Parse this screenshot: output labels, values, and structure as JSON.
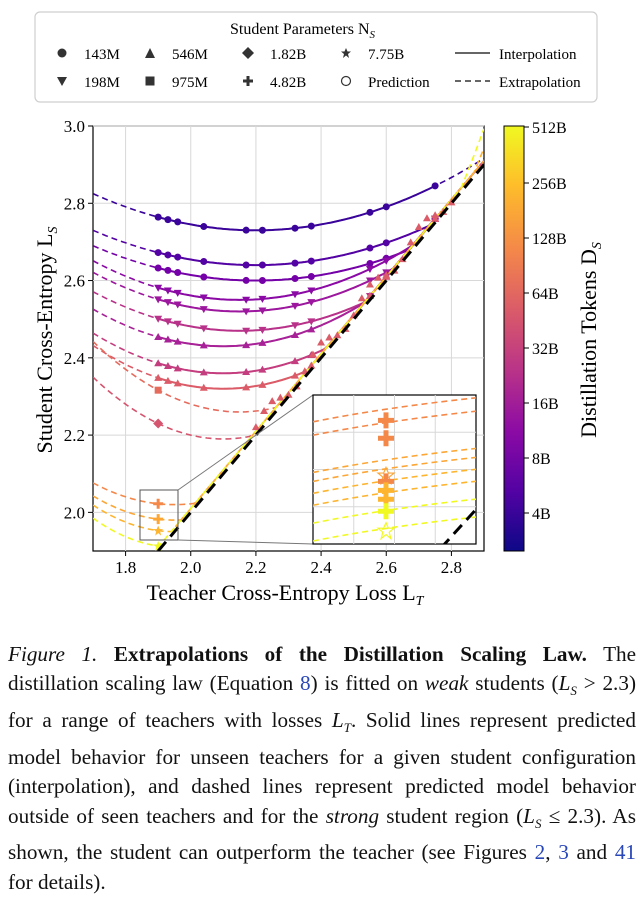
{
  "legend": {
    "title": "Student Parameters N",
    "title_sub": "S",
    "markers": [
      {
        "label": "143M",
        "marker": "circle"
      },
      {
        "label": "198M",
        "marker": "triangle-down"
      },
      {
        "label": "546M",
        "marker": "triangle-up"
      },
      {
        "label": "975M",
        "marker": "square"
      },
      {
        "label": "1.82B",
        "marker": "diamond"
      },
      {
        "label": "4.82B",
        "marker": "plus"
      },
      {
        "label": "7.75B",
        "marker": "star"
      },
      {
        "label": "Prediction",
        "marker": "open-circle"
      }
    ],
    "line_styles": [
      {
        "label": "Interpolation",
        "style": "solid"
      },
      {
        "label": "Extrapolation",
        "style": "dashed"
      }
    ]
  },
  "chart_data": {
    "type": "scatter",
    "xlabel": "Teacher Cross-Entropy Loss L",
    "xlabel_sub": "T",
    "ylabel": "Student Cross-Entropy L",
    "ylabel_sub": "S",
    "xlim": [
      1.7,
      2.9
    ],
    "ylim": [
      1.9,
      3.0
    ],
    "x_ticks": [
      "1.8",
      "2.0",
      "2.2",
      "2.4",
      "2.6",
      "2.8"
    ],
    "y_ticks": [
      "2.0",
      "2.2",
      "2.4",
      "2.6",
      "2.8",
      "3.0"
    ],
    "grid": true,
    "identity_line": {
      "style": "black dashed",
      "meaning": "student = teacher"
    },
    "colorbar": {
      "label": "Distillation Tokens D",
      "label_sub": "S",
      "ticks": [
        "4B",
        "8B",
        "16B",
        "32B",
        "64B",
        "128B",
        "256B",
        "512B"
      ],
      "colormap": "plasma",
      "colors": [
        "#0d0887",
        "#5302a3",
        "#8b0aa5",
        "#b83289",
        "#db5c68",
        "#f48849",
        "#febd2a",
        "#f0f921"
      ]
    },
    "curves": [
      {
        "name": "143M 4B",
        "color": "#3a049a",
        "x_min_loss": 2.2,
        "min_value": 2.73,
        "curvature": 0.38
      },
      {
        "name": "143M 8B",
        "color": "#5302a3",
        "x_min_loss": 2.2,
        "min_value": 2.64,
        "curvature": 0.36
      },
      {
        "name": "143M 16B",
        "color": "#7401a8",
        "x_min_loss": 2.2,
        "min_value": 2.6,
        "curvature": 0.36
      },
      {
        "name": "198M 8B",
        "color": "#8b0aa5",
        "x_min_loss": 2.15,
        "min_value": 2.55,
        "curvature": 0.5
      },
      {
        "name": "198M 16B",
        "color": "#9c179e",
        "x_min_loss": 2.15,
        "min_value": 2.52,
        "curvature": 0.5
      },
      {
        "name": "198M 32B",
        "color": "#b83289",
        "x_min_loss": 2.15,
        "min_value": 2.47,
        "curvature": 0.5
      },
      {
        "name": "546M 16B",
        "color": "#a72197",
        "x_min_loss": 2.1,
        "min_value": 2.43,
        "curvature": 0.6
      },
      {
        "name": "546M 32B",
        "color": "#c43e7f",
        "x_min_loss": 2.1,
        "min_value": 2.36,
        "curvature": 0.65
      },
      {
        "name": "546M 64B",
        "color": "#db5c68",
        "x_min_loss": 2.1,
        "min_value": 2.32,
        "curvature": 0.7
      },
      {
        "name": "975M 64B",
        "color": "#e56b5d",
        "x_min_loss": 2.15,
        "min_value": 2.26,
        "curvature": 0.9
      },
      {
        "name": "1.82B 128B",
        "color": "#d5546e",
        "x_min_loss": 2.1,
        "min_value": 2.19,
        "curvature": 1.0
      },
      {
        "name": "4.82B 256B",
        "color": "#f48849",
        "x_min_loss": 1.95,
        "min_value": 2.02,
        "curvature": 0.9
      },
      {
        "name": "4.82B 512B",
        "color": "#fca636",
        "x_min_loss": 1.95,
        "min_value": 1.98,
        "curvature": 1.0
      },
      {
        "name": "7.75B 256B",
        "color": "#fdb42f",
        "x_min_loss": 1.95,
        "min_value": 1.95,
        "curvature": 1.1
      },
      {
        "name": "7.75B 512B",
        "color": "#f0f921",
        "x_min_loss": 1.95,
        "min_value": 1.91,
        "curvature": 1.2
      }
    ],
    "inset": {
      "region_x": [
        1.85,
        1.95
      ],
      "region_y": [
        1.95,
        2.07
      ],
      "description": "zoom of strong-student region"
    }
  },
  "caption": {
    "figure_label": "Figure 1.",
    "title": "Extrapolations of the Distillation Scaling Law.",
    "t1": "The distillation scaling law (Equation ",
    "ref_eq": "8",
    "t2": ") is fitted on ",
    "weak": "weak",
    "t3": " students (",
    "cond1": "L",
    "cond1_sub": "S",
    "cond1_rest": " > 2.3",
    "t4": ") for a range of teachers with losses ",
    "lt": "L",
    "lt_sub": "T",
    "t5": ". Solid lines represent predicted model behavior for unseen teachers for a given student configuration (interpolation), and dashed lines represent predicted model behavior outside of seen teachers and for the ",
    "strong": "strong",
    "t6": " student region (",
    "cond2": "L",
    "cond2_sub": "S",
    "cond2_rest": " ≤ 2.3",
    "t7": "). As shown, the student can outperform the teacher (see Figures ",
    "ref2": "2",
    "t8": ", ",
    "ref3": "3",
    "t9": " and ",
    "ref41": "41",
    "t10": " for details)."
  }
}
